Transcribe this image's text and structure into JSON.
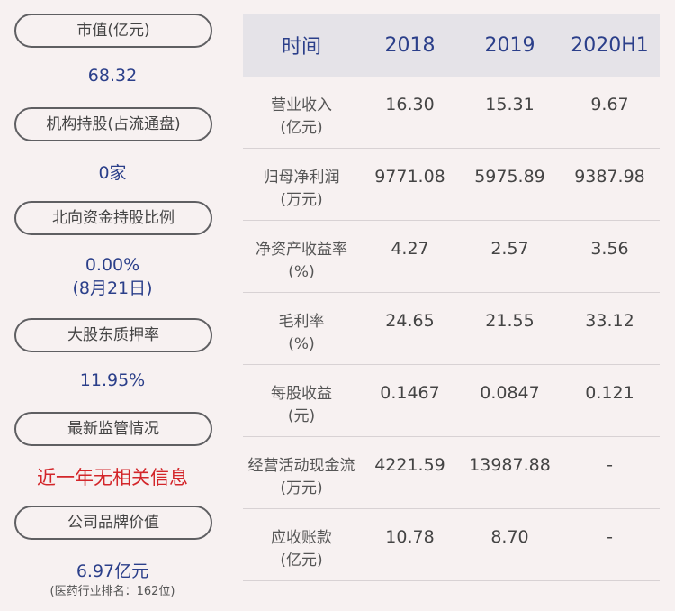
{
  "left": [
    {
      "label": "市值(亿元)",
      "value": "68.32"
    },
    {
      "label": "机构持股(占流通盘)",
      "value": "0家"
    },
    {
      "label": "北向资金持股比例",
      "value_lines": [
        "0.00%",
        "(8月21日)"
      ]
    },
    {
      "label": "大股东质押率",
      "value": "11.95%"
    },
    {
      "label": "最新监管情况",
      "value": "近一年无相关信息"
    },
    {
      "label": "公司品牌价值",
      "value": "6.97亿元",
      "note": "(医药行业排名：162位)"
    }
  ],
  "colors": {
    "accent": "#2b3f8a",
    "alert": "#d3262a",
    "background": "#f7f1f1",
    "header_bg": "#e5e3e8"
  },
  "table": {
    "headers": [
      "时间",
      "2018",
      "2019",
      "2020H1"
    ],
    "rows": [
      {
        "label": [
          "营业收入",
          "(亿元)"
        ],
        "values": [
          "16.30",
          "15.31",
          "9.67"
        ]
      },
      {
        "label": [
          "归母净利润",
          "(万元)"
        ],
        "values": [
          "9771.08",
          "5975.89",
          "9387.98"
        ]
      },
      {
        "label": [
          "净资产收益率",
          "(%)"
        ],
        "values": [
          "4.27",
          "2.57",
          "3.56"
        ]
      },
      {
        "label": [
          "毛利率",
          "(%)"
        ],
        "values": [
          "24.65",
          "21.55",
          "33.12"
        ]
      },
      {
        "label": [
          "每股收益",
          "(元)"
        ],
        "values": [
          "0.1467",
          "0.0847",
          "0.121"
        ]
      },
      {
        "label": [
          "经营活动现金流",
          "(万元)"
        ],
        "values": [
          "4221.59",
          "13987.88",
          "-"
        ]
      },
      {
        "label": [
          "应收账款",
          "(亿元)"
        ],
        "values": [
          "10.78",
          "8.70",
          "-"
        ]
      }
    ]
  }
}
